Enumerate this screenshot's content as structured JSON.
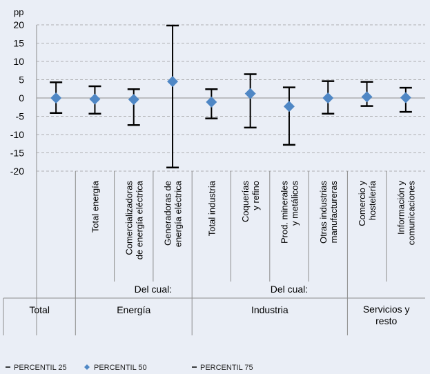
{
  "chart_data": {
    "type": "error-bar",
    "y_unit": "pp",
    "ylim": [
      -20,
      20
    ],
    "yticks": [
      20,
      15,
      10,
      5,
      0,
      -5,
      -10,
      -15,
      -20
    ],
    "ytick_labels": [
      "20",
      "15",
      "10",
      "5",
      "0",
      "-5",
      "-10",
      "-15",
      "-20"
    ],
    "grid": "horizontal dashed",
    "categories": [
      {
        "lines": [
          ""
        ]
      },
      {
        "lines": [
          "Total energía"
        ]
      },
      {
        "lines": [
          "Comercializadoras",
          "de energía eléctrica"
        ]
      },
      {
        "lines": [
          "Generadoras de",
          "energía eléctrica"
        ]
      },
      {
        "lines": [
          "Total industria"
        ]
      },
      {
        "lines": [
          "Coquerías",
          "y refino"
        ]
      },
      {
        "lines": [
          "Prod. minerales",
          "y metálicos"
        ]
      },
      {
        "lines": [
          "Otras industrias",
          "manufactureras"
        ]
      },
      {
        "lines": [
          "Comercio y",
          "hostelería"
        ]
      },
      {
        "lines": [
          "Información y",
          "comunicaciones"
        ]
      }
    ],
    "series": [
      {
        "name": "PERCENTIL 25",
        "values": [
          -4.1,
          -4.3,
          -7.4,
          -19.0,
          -5.6,
          -8.1,
          -12.8,
          -4.3,
          -2.2,
          -3.8
        ]
      },
      {
        "name": "PERCENTIL 50",
        "values": [
          0.0,
          -0.3,
          -0.4,
          4.5,
          -1.1,
          1.2,
          -2.3,
          0.0,
          0.3,
          0.1
        ]
      },
      {
        "name": "PERCENTIL 75",
        "values": [
          4.3,
          3.2,
          2.4,
          19.8,
          2.4,
          6.5,
          2.9,
          4.6,
          4.4,
          2.8
        ]
      }
    ],
    "subgroup_label": "Del cual:",
    "groups": [
      {
        "lines": [
          "Total"
        ],
        "span": [
          0,
          0
        ]
      },
      {
        "lines": [
          "Energía"
        ],
        "span": [
          1,
          3
        ]
      },
      {
        "lines": [
          "Industria"
        ],
        "span": [
          4,
          7
        ]
      },
      {
        "lines": [
          "Servicios y",
          "resto"
        ],
        "span": [
          8,
          9
        ]
      }
    ],
    "subgroups": [
      {
        "span": [
          2,
          3
        ]
      },
      {
        "span": [
          5,
          7
        ]
      }
    ],
    "legend": [
      "PERCENTIL 25",
      "PERCENTIL 50",
      "PERCENTIL 75"
    ],
    "legend_position": "bottom-left",
    "colors": {
      "marker": "#4f87c5",
      "errorbar": "#000000",
      "grid": "#9a9a9a",
      "background": "#eaeef6"
    }
  }
}
